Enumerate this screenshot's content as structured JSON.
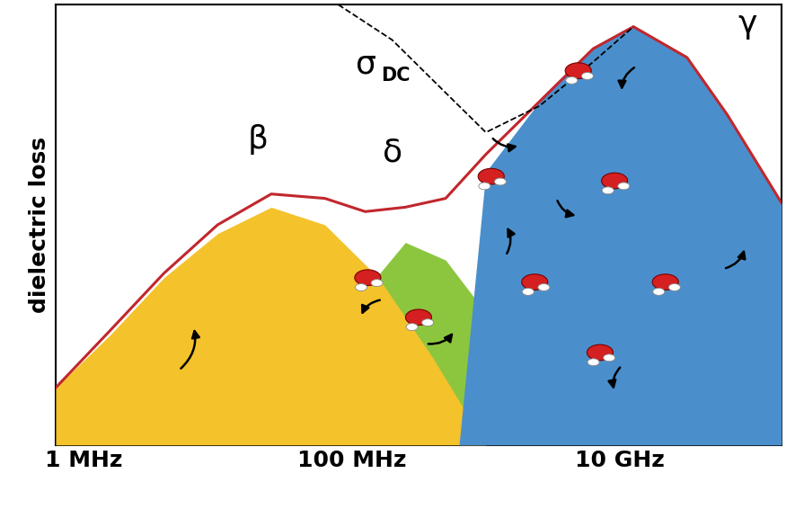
{
  "chart_data": {
    "type": "area",
    "y_label": "dielectric loss",
    "log": "x",
    "xlim": [
      620000,
      160000000000
    ],
    "xticks": [
      {
        "value": 1000000,
        "label": "1 MHz"
      },
      {
        "value": 100000000,
        "label": "100 MHz"
      },
      {
        "value": 10000000000,
        "label": "10 GHz"
      }
    ],
    "ylim": [
      0,
      1
    ],
    "yticks": [],
    "tick_labels": "x",
    "series": [
      {
        "name": "β",
        "type": "area",
        "color": "#f4c22b",
        "x": [
          620000,
          1580000,
          3980000,
          10000000,
          25100000,
          63100000,
          158000000,
          398000000,
          1000000000
        ],
        "values": [
          0.13,
          0.25,
          0.38,
          0.48,
          0.54,
          0.5,
          0.38,
          0.2,
          0.0
        ]
      },
      {
        "name": "δ",
        "type": "area",
        "color": "#8cc63f",
        "x": [
          25100000,
          63100000,
          126000000,
          251000000,
          501000000,
          1000000000,
          2510000000,
          6310000000,
          13800000000
        ],
        "values": [
          0.0,
          0.15,
          0.35,
          0.46,
          0.42,
          0.3,
          0.15,
          0.05,
          0.0
        ]
      },
      {
        "name": "γ",
        "type": "area",
        "color": "#4a8fcc",
        "x": [
          631000000,
          1000000000,
          2510000000,
          6310000000,
          12600000000,
          31600000000,
          63100000000,
          160000000000
        ],
        "values": [
          0.0,
          0.62,
          0.78,
          0.9,
          0.95,
          0.88,
          0.75,
          0.55
        ]
      },
      {
        "type": "line",
        "color": "#c1272d",
        "x": [
          620000,
          1580000,
          3980000,
          10000000,
          25100000,
          63100000,
          126000000,
          251000000,
          501000000,
          1000000000,
          2510000000,
          6310000000,
          12600000000,
          31600000000,
          63100000000,
          160000000000
        ],
        "values": [
          0.13,
          0.26,
          0.39,
          0.5,
          0.57,
          0.56,
          0.53,
          0.54,
          0.56,
          0.66,
          0.78,
          0.9,
          0.95,
          0.88,
          0.75,
          0.55
        ]
      },
      {
        "name": "σDC",
        "type": "line",
        "color": "#000000",
        "line_style": "dashed",
        "x": [
          79400000,
          200000000,
          501000000,
          1000000000,
          2510000000,
          6310000000,
          12600000000
        ],
        "values": [
          1.0,
          0.92,
          0.8,
          0.71,
          0.77,
          0.87,
          0.95
        ]
      }
    ]
  }
}
